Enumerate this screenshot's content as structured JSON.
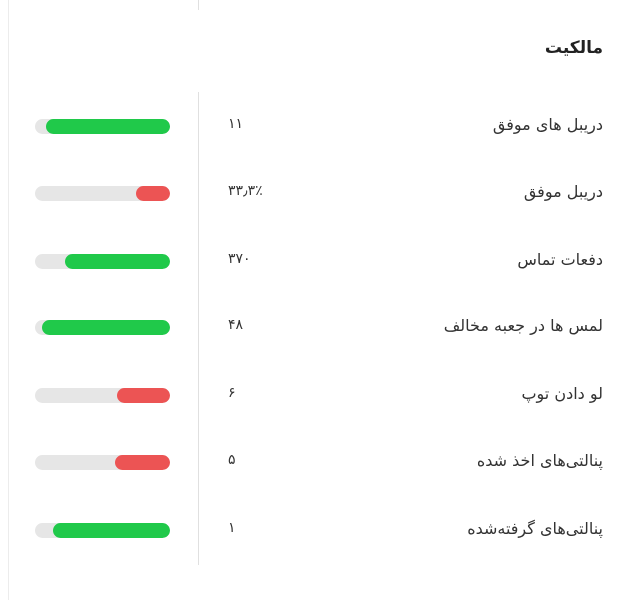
{
  "section": {
    "title": "مالکیت",
    "rows": [
      {
        "label": "دریبل های موفق",
        "value": "۱۱",
        "fill": 92,
        "color": "#20c94a"
      },
      {
        "label": "دریبل موفق",
        "value": "۳۳٫۳٪",
        "fill": 25,
        "color": "#ec5454"
      },
      {
        "label": "دفعات تماس",
        "value": "۳۷۰",
        "fill": 78,
        "color": "#20c94a"
      },
      {
        "label": "لمس ها در جعبه مخالف",
        "value": "۴۸",
        "fill": 95,
        "color": "#20c94a"
      },
      {
        "label": "لو دادن توپ",
        "value": "۶",
        "fill": 39,
        "color": "#ec5454"
      },
      {
        "label": "پنالتی‌های اخذ شده",
        "value": "۵",
        "fill": 41,
        "color": "#ec5454"
      },
      {
        "label": "پنالتی‌های گرفته‌شده",
        "value": "۱",
        "fill": 87,
        "color": "#20c94a"
      }
    ]
  }
}
